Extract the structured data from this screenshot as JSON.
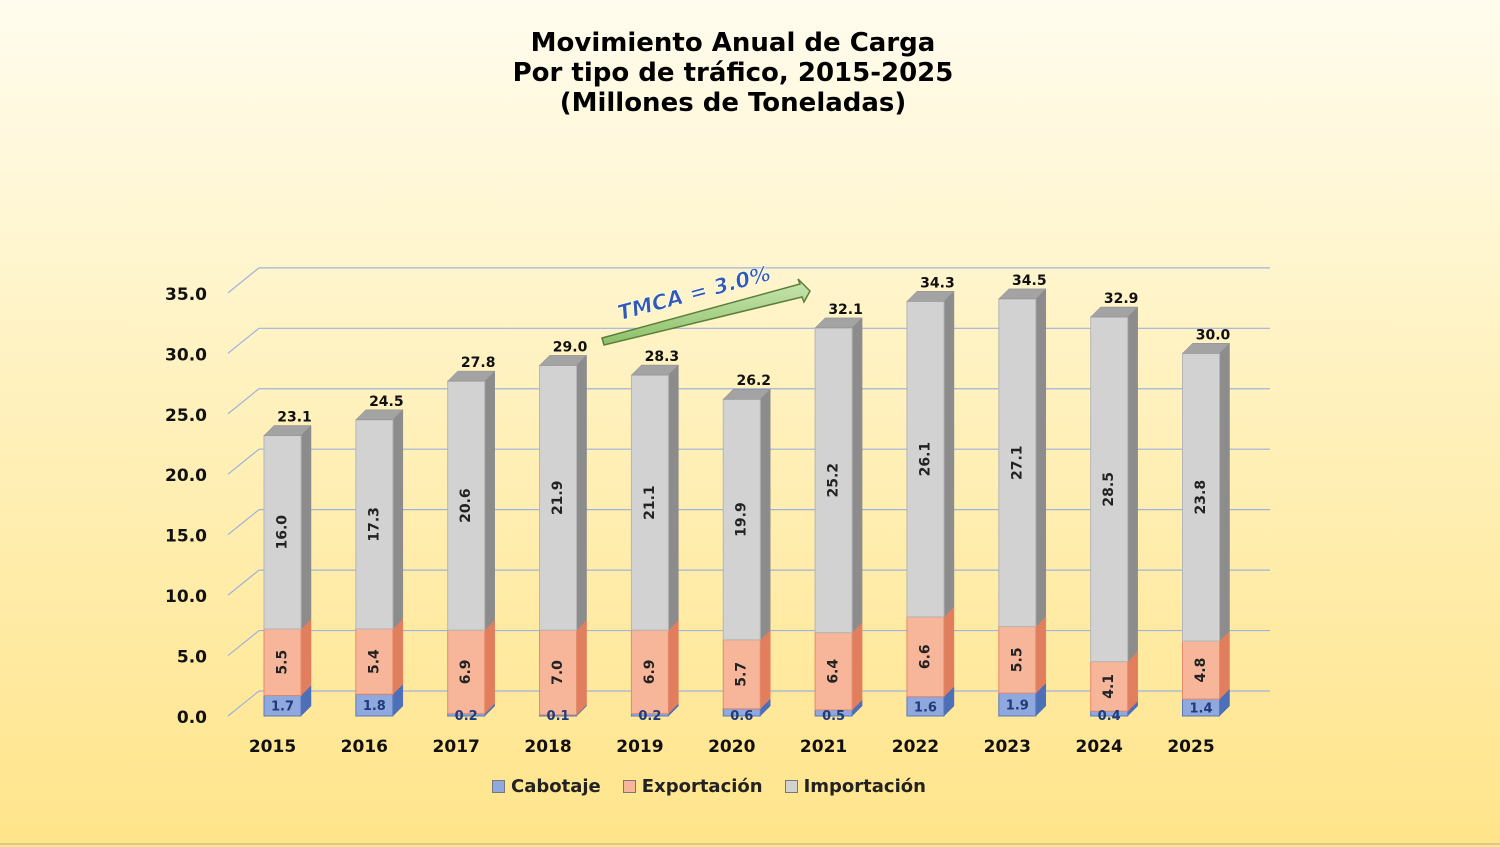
{
  "title_lines": [
    "Movimiento Anual de Carga",
    "Por tipo de tráfico, 2015-2025",
    "(Millones de Toneladas)"
  ],
  "annotation": "TMCA = 3.0%",
  "colors": {
    "cabotaje": "#8fa8de",
    "exportacion": "#f7b69a",
    "importacion": "#d2d2d2",
    "gridline": "#9fb3db"
  },
  "chart_data": {
    "type": "bar",
    "stacked": true,
    "three_d": true,
    "categories": [
      "2015",
      "2016",
      "2017",
      "2018",
      "2019",
      "2020",
      "2021",
      "2022",
      "2023",
      "2024",
      "2025"
    ],
    "series": [
      {
        "name": "Cabotaje",
        "values": [
          1.7,
          1.8,
          0.2,
          0.1,
          0.2,
          0.6,
          0.5,
          1.6,
          1.9,
          0.4,
          1.4
        ]
      },
      {
        "name": "Exportación",
        "values": [
          5.5,
          5.4,
          6.9,
          7.0,
          6.9,
          5.7,
          6.4,
          6.6,
          5.5,
          4.1,
          4.8
        ]
      },
      {
        "name": "Importación",
        "values": [
          16.0,
          17.3,
          20.6,
          21.9,
          21.1,
          19.9,
          25.2,
          26.1,
          27.1,
          28.5,
          23.8
        ]
      }
    ],
    "totals": [
      23.1,
      24.5,
      27.8,
      29.0,
      28.3,
      26.2,
      32.1,
      34.3,
      34.5,
      32.9,
      30.0
    ],
    "ylim": [
      0,
      35
    ],
    "yticks": [
      "0.0",
      "5.0",
      "10.0",
      "15.0",
      "20.0",
      "25.0",
      "30.0",
      "35.0"
    ],
    "grid": true,
    "legend_position": "bottom"
  }
}
